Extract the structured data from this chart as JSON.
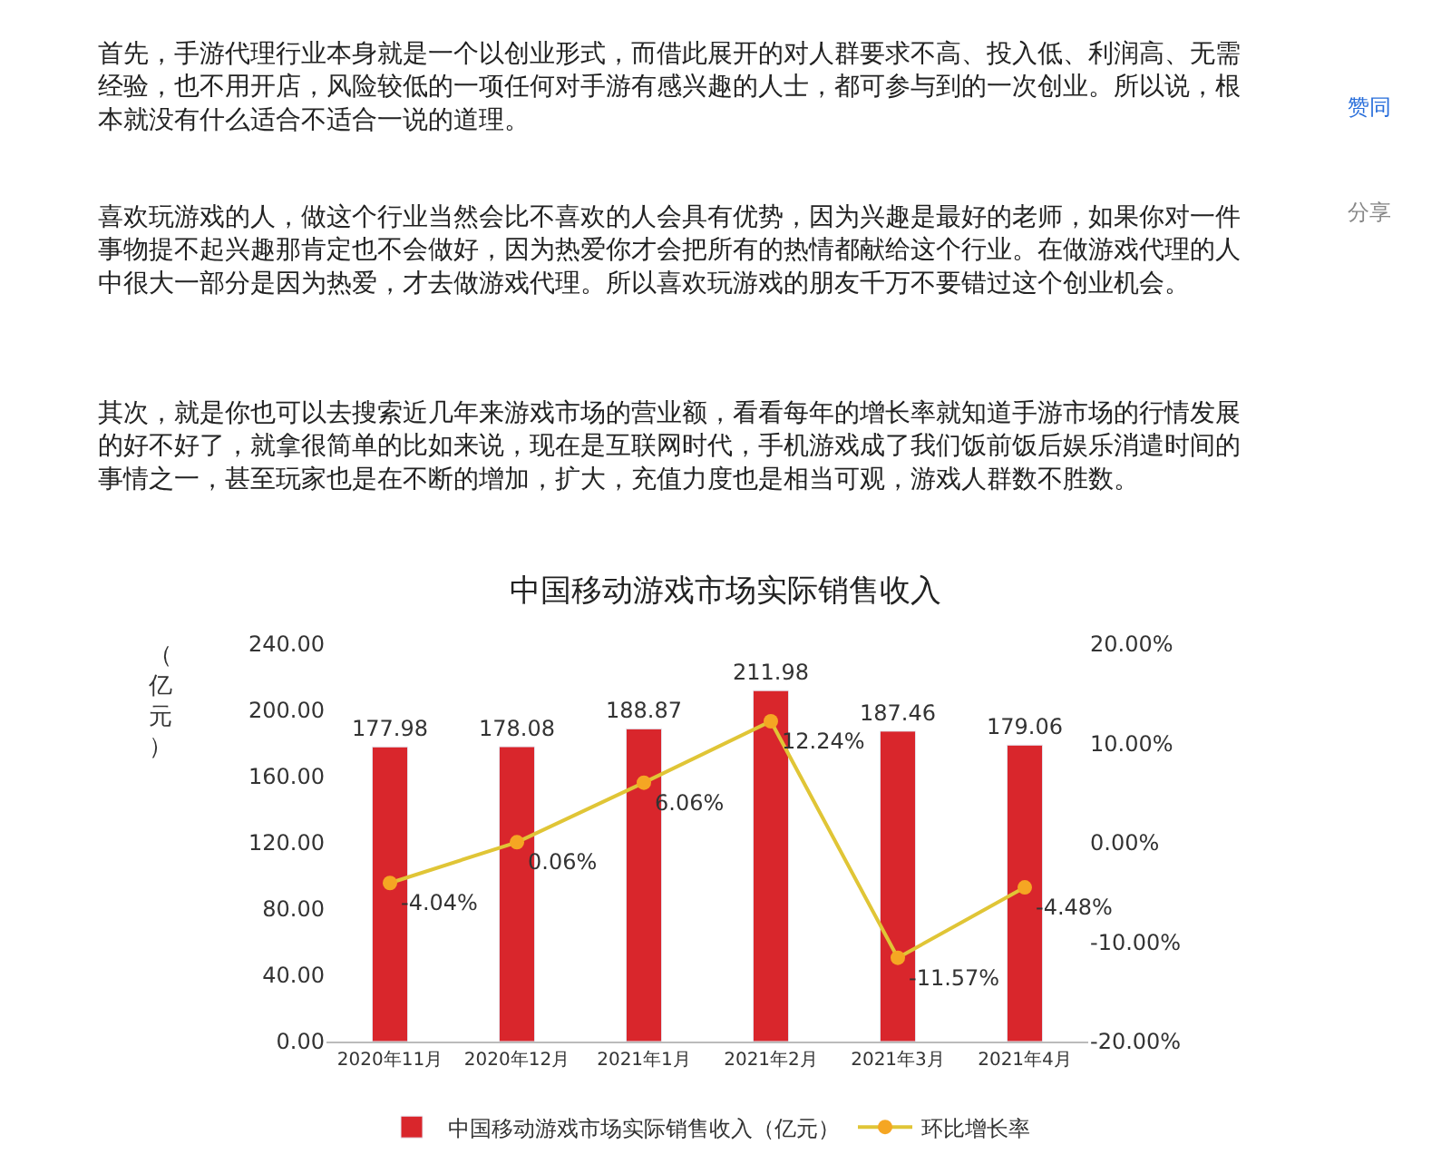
{
  "chart_data": {
    "type": "bar",
    "title": "中国移动游戏市场实际销售收入",
    "ylabel": "（亿元）",
    "categories": [
      "2020年11月",
      "2020年12月",
      "2021年1月",
      "2021年2月",
      "2021年3月",
      "2021年4月"
    ],
    "series": [
      {
        "name": "中国移动游戏市场实际销售收入（亿元）",
        "color": "#d9262c",
        "values": [
          177.98,
          178.08,
          188.87,
          211.98,
          187.46,
          179.06
        ],
        "value_labels": [
          "177.98",
          "178.08",
          "188.87",
          "211.98",
          "187.46",
          "179.06"
        ]
      },
      {
        "name": "环比增长率",
        "type": "line",
        "axis": "y2",
        "color": "#e0c536",
        "marker": "circle",
        "values": [
          -4.04,
          0.06,
          6.06,
          12.24,
          -11.57,
          -4.48
        ],
        "value_labels": [
          "-4.04%",
          "0.06%",
          "6.06%",
          "12.24%",
          "-11.57%",
          "-4.48%"
        ]
      }
    ],
    "ylim": [
      0,
      240
    ],
    "yticks": [
      {
        "value": 0,
        "label": "0.00"
      },
      {
        "value": 40,
        "label": "40.00"
      },
      {
        "value": 80,
        "label": "80.00"
      },
      {
        "value": 120,
        "label": "120.00"
      },
      {
        "value": 160,
        "label": "160.00"
      },
      {
        "value": 200,
        "label": "200.00"
      },
      {
        "value": 240,
        "label": "240.00"
      }
    ],
    "y2lim": [
      -20,
      20
    ],
    "y2ticks": [
      {
        "value": -20,
        "label": "-20.00%"
      },
      {
        "value": -10,
        "label": "-10.00%"
      },
      {
        "value": 0,
        "label": "0.00%"
      },
      {
        "value": 10,
        "label": "10.00%"
      },
      {
        "value": 20,
        "label": "20.00%"
      }
    ],
    "legend": "bottom",
    "annotations": [
      "首先，手游代理行业本身就是一个以创业形式，而借此展开的对人群要求不高、投入低、利润高、无需经验，也不用开店，风险较低的一项任何对手游有感兴趣的人士，都可参与到的一次创业。所以说，根本就没有什么适合不适合一说的道理。",
      "喜欢玩游戏的人，做这个行业当然会比不喜欢的人会具有优势，因为兴趣是最好的老师，如果你对一件事物提不起兴趣那肯定也不会做好，因为热爱你才会把所有的热情都献给这个行业。在做游戏代理的人中很大一部分是因为热爱，才去做游戏代理。所以喜欢玩游戏的朋友千万不要错过这个创业机会。",
      "其次，就是你也可以去搜索近几年来游戏市场的营业额，看看每年的增长率就知道手游市场的行情发展的好不好了，就拿很简单的比如来说，现在是互联网时代，手机游戏成了我们饭前饭后娱乐消遣时间的事情之一，甚至玩家也是在不断的增加，扩大，充值力度也是相当可观，游戏人群数不胜数。",
      "赞同",
      "分享"
    ]
  }
}
